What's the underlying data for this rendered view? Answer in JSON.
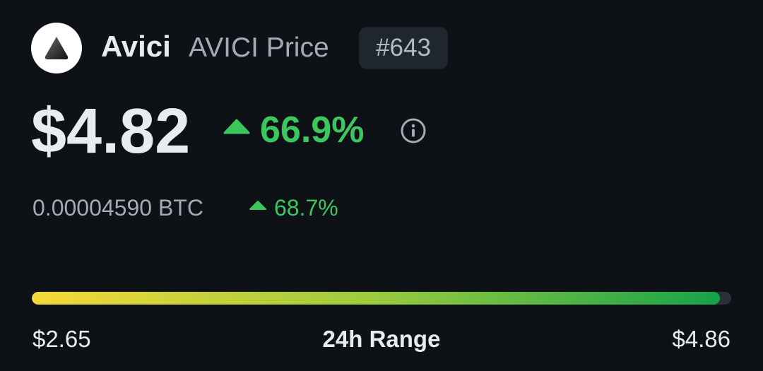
{
  "header": {
    "name": "Avici",
    "symbol_label": "AVICI Price",
    "rank": "#643"
  },
  "price": {
    "usd": "$4.82",
    "usd_change": "66.9%",
    "btc": "0.00004590 BTC",
    "btc_change": "68.7%"
  },
  "range": {
    "low": "$2.65",
    "label": "24h Range",
    "high": "$4.86"
  }
}
